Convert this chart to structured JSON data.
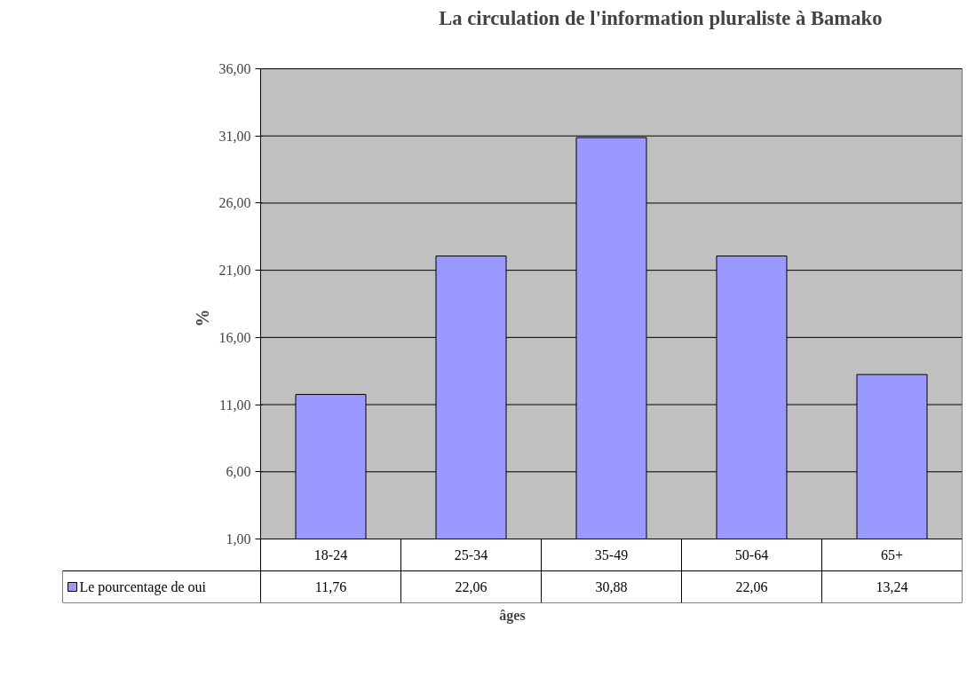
{
  "chart_data": {
    "type": "bar",
    "title": "La circulation de l'information pluraliste à Bamako",
    "xlabel": "âges",
    "ylabel": "%",
    "categories": [
      "18-24",
      "25-34",
      "35-49",
      "50-64",
      "65+"
    ],
    "series": [
      {
        "name": "Le pourcentage de oui",
        "color": "#9999ff",
        "values": [
          11.76,
          22.06,
          30.88,
          22.06,
          13.24
        ],
        "value_labels": [
          "11,76",
          "22,06",
          "30,88",
          "22,06",
          "13,24"
        ]
      }
    ],
    "ylim": [
      1,
      36
    ],
    "yticks": [
      {
        "value": 1,
        "label": "1,00"
      },
      {
        "value": 6,
        "label": "6,00"
      },
      {
        "value": 11,
        "label": "11,00"
      },
      {
        "value": 16,
        "label": "16,00"
      },
      {
        "value": 21,
        "label": "21,00"
      },
      {
        "value": 26,
        "label": "26,00"
      },
      {
        "value": 31,
        "label": "31,00"
      },
      {
        "value": 36,
        "label": "36,00"
      }
    ],
    "grid": "y",
    "legend": "bottom"
  }
}
